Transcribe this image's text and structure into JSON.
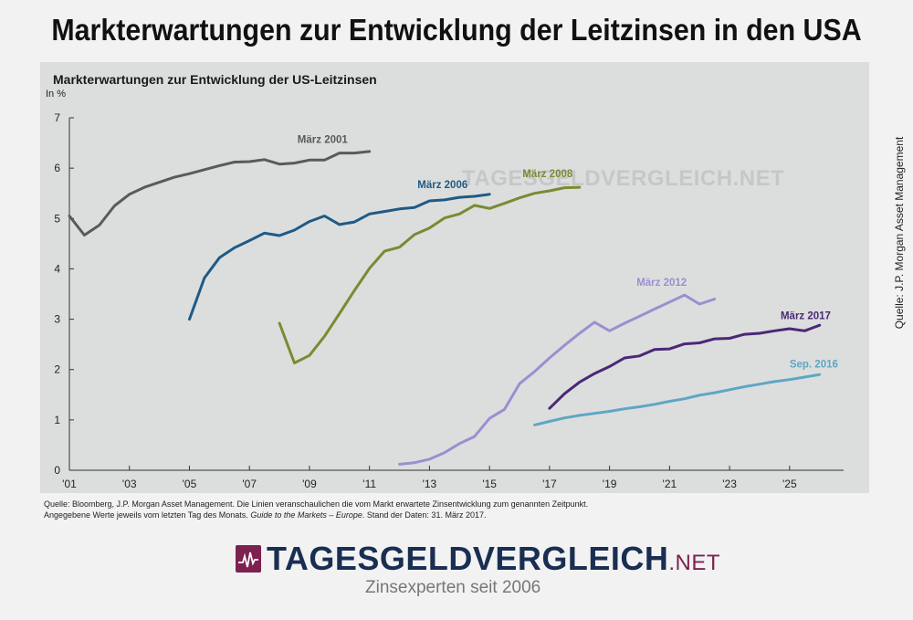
{
  "page_title": "Markterwartungen zur Entwicklung der Leitzinsen in den USA",
  "side_source": "Quelle: J.P. Morgan Asset Management",
  "footnote_line1": "Quelle: Bloomberg, J.P. Morgan Asset Management. Die Linien veranschaulichen die vom Markt erwartete Zinsentwicklung zum genannten Zeitpunkt.",
  "footnote_line2_a": "Angegebene Werte jeweils vom letzten Tag des Monats.",
  "footnote_line2_b": "Guide to the Markets – Europe",
  "footnote_line2_c": ". Stand der Daten: 31. März 2017.",
  "logo": {
    "main": "TAGESGELDVERGLEICH",
    "suffix": ".NET",
    "tagline": "Zinsexperten seit 2006"
  },
  "watermark": "TAGESGELDVERGLEICH.NET",
  "chart_data": {
    "type": "line",
    "title": "Markterwartungen zur Entwicklung der US-Leitzinsen",
    "ylabel": "In %",
    "xlabel": "",
    "xlim": [
      2001,
      2026.8
    ],
    "ylim": [
      0,
      7
    ],
    "yticks": [
      0,
      1,
      2,
      3,
      4,
      5,
      6,
      7
    ],
    "xticks": [
      {
        "value": 2001,
        "label": "'01"
      },
      {
        "value": 2003,
        "label": "'03"
      },
      {
        "value": 2005,
        "label": "'05"
      },
      {
        "value": 2007,
        "label": "'07"
      },
      {
        "value": 2009,
        "label": "'09"
      },
      {
        "value": 2011,
        "label": "'11"
      },
      {
        "value": 2013,
        "label": "'13"
      },
      {
        "value": 2015,
        "label": "'15"
      },
      {
        "value": 2017,
        "label": "'17"
      },
      {
        "value": 2019,
        "label": "'19"
      },
      {
        "value": 2021,
        "label": "'21"
      },
      {
        "value": 2023,
        "label": "'23"
      },
      {
        "value": 2025,
        "label": "'25"
      }
    ],
    "grid": false,
    "series": [
      {
        "name": "März 2001",
        "color": "#5a5a5a",
        "x": [
          2001.0,
          2001.5,
          2002.0,
          2002.5,
          2003.0,
          2003.5,
          2004.0,
          2004.5,
          2005.0,
          2005.5,
          2006.0,
          2006.5,
          2007.0,
          2007.5,
          2008.0,
          2008.5,
          2009.0,
          2009.5,
          2010.0,
          2010.5,
          2011.0
        ],
        "y": [
          5.05,
          4.67,
          4.87,
          5.25,
          5.48,
          5.62,
          5.72,
          5.82,
          5.89,
          5.97,
          6.05,
          6.12,
          6.13,
          6.17,
          6.08,
          6.1,
          6.16,
          6.16,
          6.3,
          6.3,
          6.33
        ]
      },
      {
        "name": "März 2006",
        "color": "#1f5a85",
        "x": [
          2005.0,
          2005.5,
          2006.0,
          2006.5,
          2007.0,
          2007.5,
          2008.0,
          2008.5,
          2009.0,
          2009.5,
          2010.0,
          2010.5,
          2011.0,
          2011.5,
          2012.0,
          2012.5,
          2013.0,
          2013.5,
          2014.0,
          2014.5,
          2015.0
        ],
        "y": [
          3.0,
          3.82,
          4.22,
          4.42,
          4.56,
          4.71,
          4.66,
          4.77,
          4.94,
          5.05,
          4.88,
          4.93,
          5.09,
          5.14,
          5.19,
          5.22,
          5.35,
          5.37,
          5.42,
          5.44,
          5.48
        ]
      },
      {
        "name": "März 2008",
        "color": "#7b8a33",
        "x": [
          2008.0,
          2008.5,
          2009.0,
          2009.5,
          2010.0,
          2010.5,
          2011.0,
          2011.5,
          2012.0,
          2012.5,
          2013.0,
          2013.5,
          2014.0,
          2014.5,
          2015.0,
          2015.5,
          2016.0,
          2016.5,
          2017.0,
          2017.5,
          2018.0
        ],
        "y": [
          2.92,
          2.13,
          2.28,
          2.66,
          3.11,
          3.57,
          4.01,
          4.35,
          4.43,
          4.68,
          4.81,
          5.01,
          5.09,
          5.26,
          5.2,
          5.3,
          5.41,
          5.5,
          5.55,
          5.61,
          5.62
        ]
      },
      {
        "name": "März 2012",
        "color": "#9b8fd0",
        "x": [
          2012.0,
          2012.5,
          2013.0,
          2013.5,
          2014.0,
          2014.5,
          2015.0,
          2015.5,
          2016.0,
          2016.5,
          2017.0,
          2017.5,
          2018.0,
          2018.5,
          2019.0,
          2019.5,
          2020.0,
          2020.5,
          2021.0,
          2021.5,
          2022.0,
          2022.5
        ],
        "y": [
          0.12,
          0.15,
          0.22,
          0.35,
          0.53,
          0.67,
          1.03,
          1.21,
          1.72,
          1.96,
          2.23,
          2.48,
          2.72,
          2.94,
          2.77,
          2.92,
          3.06,
          3.2,
          3.34,
          3.48,
          3.3,
          3.4
        ]
      },
      {
        "name": "März 2017",
        "color": "#4a2876",
        "x": [
          2017.0,
          2017.5,
          2018.0,
          2018.5,
          2019.0,
          2019.5,
          2020.0,
          2020.5,
          2021.0,
          2021.5,
          2022.0,
          2022.5,
          2023.0,
          2023.5,
          2024.0,
          2024.5,
          2025.0,
          2025.5,
          2026.0
        ],
        "y": [
          1.23,
          1.52,
          1.75,
          1.92,
          2.06,
          2.23,
          2.27,
          2.4,
          2.41,
          2.51,
          2.53,
          2.61,
          2.62,
          2.7,
          2.72,
          2.77,
          2.81,
          2.77,
          2.88
        ]
      },
      {
        "name": "Sep. 2016",
        "color": "#5fa6c4",
        "x": [
          2016.5,
          2017.0,
          2017.5,
          2018.0,
          2018.5,
          2019.0,
          2019.5,
          2020.0,
          2020.5,
          2021.0,
          2021.5,
          2022.0,
          2022.5,
          2023.0,
          2023.5,
          2024.0,
          2024.5,
          2025.0,
          2025.5,
          2026.0
        ],
        "y": [
          0.9,
          0.97,
          1.04,
          1.09,
          1.13,
          1.17,
          1.22,
          1.26,
          1.31,
          1.37,
          1.42,
          1.49,
          1.54,
          1.6,
          1.66,
          1.71,
          1.76,
          1.8,
          1.85,
          1.9
        ]
      }
    ],
    "annotations": [
      {
        "text": "März 2001",
        "series": "März 2001",
        "x": 2008.6,
        "y": 6.5
      },
      {
        "text": "März 2006",
        "series": "März 2006",
        "x": 2012.6,
        "y": 5.6
      },
      {
        "text": "März 2008",
        "series": "März 2008",
        "x": 2016.1,
        "y": 5.82
      },
      {
        "text": "März 2012",
        "series": "März 2012",
        "x": 2019.9,
        "y": 3.66
      },
      {
        "text": "März 2017",
        "series": "März 2017",
        "x": 2024.7,
        "y": 3.0
      },
      {
        "text": "Sep. 2016",
        "series": "Sep. 2016",
        "x": 2025.0,
        "y": 2.04
      }
    ]
  }
}
